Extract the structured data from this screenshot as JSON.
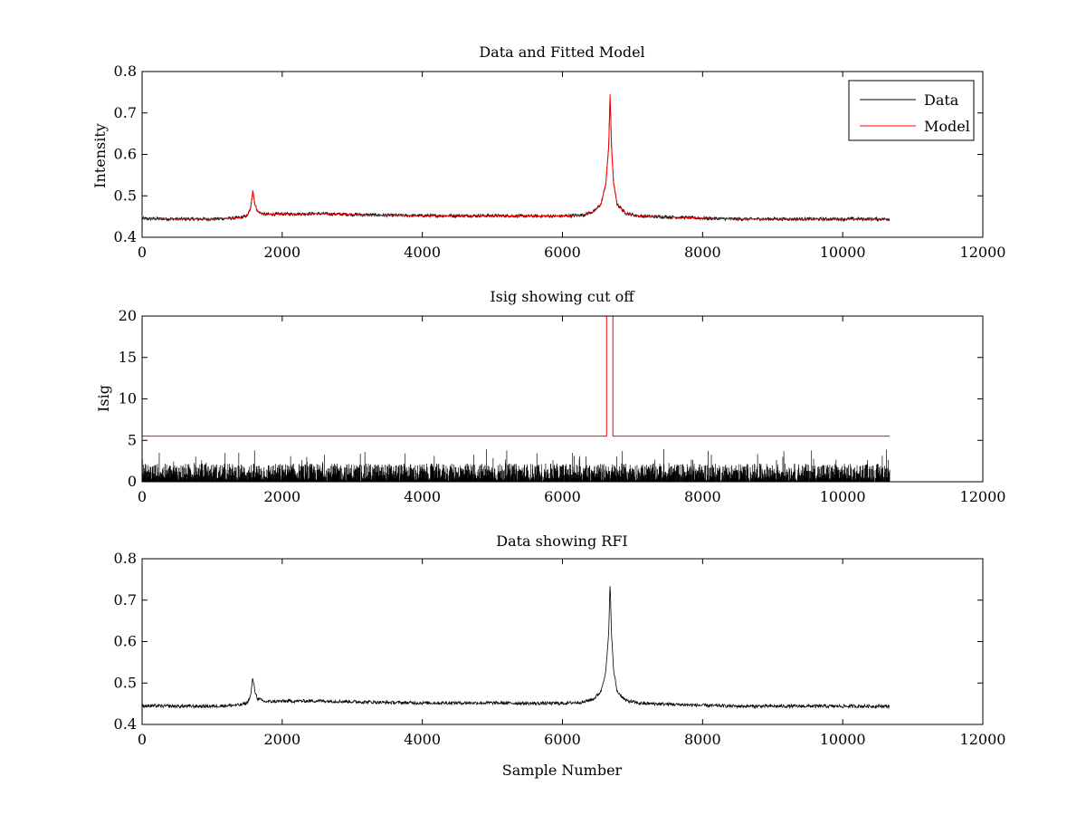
{
  "chart_data": [
    {
      "type": "line",
      "title": "Data and Fitted Model",
      "xlabel": "",
      "ylabel": "Intensity",
      "xlim": [
        0,
        12000
      ],
      "ylim": [
        0.4,
        0.8
      ],
      "xticks": [
        0,
        2000,
        4000,
        6000,
        8000,
        10000,
        12000
      ],
      "yticks": [
        0.4,
        0.5,
        0.6,
        0.7,
        0.8
      ],
      "grid": false,
      "legend": "top-right",
      "series": [
        {
          "name": "Data",
          "color": "#000000",
          "style": "noisy",
          "noise_amplitude": 0.004,
          "x": [
            0,
            500,
            1000,
            1400,
            1500,
            1550,
            1580,
            1610,
            1650,
            1750,
            2000,
            2500,
            3000,
            3500,
            4000,
            4500,
            5000,
            5500,
            6000,
            6300,
            6450,
            6550,
            6620,
            6660,
            6680,
            6700,
            6730,
            6780,
            6900,
            7100,
            7500,
            8000,
            8500,
            9000,
            9500,
            10000,
            10670
          ],
          "y": [
            0.445,
            0.444,
            0.444,
            0.447,
            0.452,
            0.47,
            0.513,
            0.48,
            0.462,
            0.455,
            0.456,
            0.457,
            0.455,
            0.453,
            0.452,
            0.452,
            0.452,
            0.451,
            0.451,
            0.454,
            0.462,
            0.48,
            0.53,
            0.62,
            0.745,
            0.62,
            0.53,
            0.48,
            0.458,
            0.451,
            0.449,
            0.446,
            0.444,
            0.444,
            0.444,
            0.444,
            0.444
          ]
        },
        {
          "name": "Model",
          "color": "#ff0000",
          "style": "smooth",
          "x": [
            0,
            500,
            1000,
            1400,
            1500,
            1550,
            1580,
            1610,
            1650,
            1750,
            2000,
            2500,
            3000,
            3500,
            4000,
            4500,
            5000,
            5500,
            6000,
            6300,
            6450,
            6550,
            6620,
            6660,
            6680,
            6700,
            6730,
            6780,
            6900,
            7100,
            7500,
            8000,
            8500,
            9000,
            9500,
            10000,
            10670
          ],
          "y": [
            0.445,
            0.444,
            0.444,
            0.447,
            0.452,
            0.47,
            0.513,
            0.48,
            0.462,
            0.455,
            0.456,
            0.457,
            0.455,
            0.453,
            0.452,
            0.452,
            0.452,
            0.451,
            0.451,
            0.454,
            0.462,
            0.48,
            0.53,
            0.62,
            0.745,
            0.62,
            0.53,
            0.48,
            0.458,
            0.451,
            0.449,
            0.446,
            0.444,
            0.444,
            0.444,
            0.444,
            0.444
          ]
        }
      ]
    },
    {
      "type": "line",
      "title": "Isig showing cut off",
      "xlabel": "",
      "ylabel": "Isig",
      "xlim": [
        0,
        12000
      ],
      "ylim": [
        0,
        20
      ],
      "xticks": [
        0,
        2000,
        4000,
        6000,
        8000,
        10000,
        12000
      ],
      "yticks": [
        0,
        5,
        10,
        15,
        20
      ],
      "grid": false,
      "series": [
        {
          "name": "",
          "color": "#000000",
          "style": "bars",
          "x_range": [
            0,
            10670
          ],
          "typical_max": 2.2,
          "peak_max": 4
        },
        {
          "name": "",
          "color": "#ff0000",
          "style": "step",
          "x": [
            0,
            6630,
            6630,
            6720,
            6720,
            10670
          ],
          "y": [
            5.5,
            5.5,
            20,
            20,
            5.5,
            5.5
          ]
        }
      ]
    },
    {
      "type": "line",
      "title": "Data showing RFI",
      "xlabel": "Sample Number",
      "ylabel": "",
      "xlim": [
        0,
        12000
      ],
      "ylim": [
        0.4,
        0.8
      ],
      "xticks": [
        0,
        2000,
        4000,
        6000,
        8000,
        10000,
        12000
      ],
      "yticks": [
        0.4,
        0.5,
        0.6,
        0.7,
        0.8
      ],
      "grid": false,
      "series": [
        {
          "name": "",
          "color": "#000000",
          "style": "noisy",
          "noise_amplitude": 0.004,
          "x": [
            0,
            500,
            1000,
            1400,
            1500,
            1550,
            1580,
            1610,
            1650,
            1750,
            2000,
            2500,
            3000,
            3500,
            4000,
            4500,
            5000,
            5500,
            6000,
            6300,
            6450,
            6550,
            6620,
            6660,
            6680,
            6700,
            6730,
            6780,
            6900,
            7100,
            7500,
            8000,
            8500,
            9000,
            9500,
            10000,
            10670
          ],
          "y": [
            0.445,
            0.444,
            0.444,
            0.447,
            0.452,
            0.47,
            0.513,
            0.48,
            0.462,
            0.455,
            0.456,
            0.457,
            0.455,
            0.453,
            0.452,
            0.452,
            0.452,
            0.451,
            0.451,
            0.454,
            0.462,
            0.48,
            0.53,
            0.62,
            0.745,
            0.62,
            0.53,
            0.48,
            0.458,
            0.451,
            0.449,
            0.446,
            0.444,
            0.444,
            0.444,
            0.444,
            0.444
          ]
        }
      ]
    }
  ]
}
